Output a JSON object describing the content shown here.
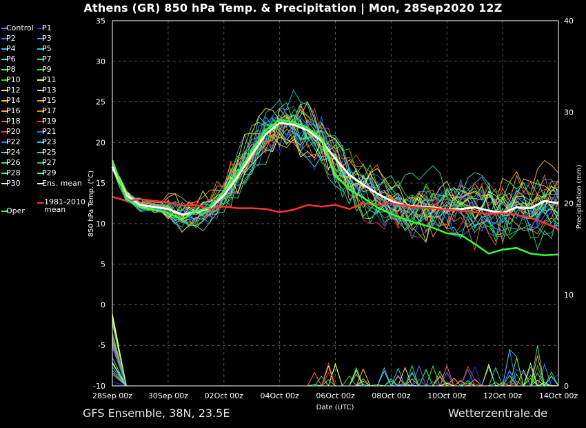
{
  "title": "Athens  (GR)  850 hPa Temp. & Precipitation | Mon, 28Sep2020 12Z",
  "footer": {
    "left": "GFS Ensemble, 38N, 23.5E",
    "right": "Wetterzentrale.de"
  },
  "chart_data": {
    "type": "line",
    "xlabel": "Date (UTC)",
    "ylabel": "850 hPa Temp. (°C)",
    "y2label": "Precipitation (mm)",
    "ylim": [
      -10,
      35
    ],
    "y2lim": [
      0,
      40
    ],
    "xlim_hours": [
      0,
      384
    ],
    "x_ticks": [
      "28Sep 00z",
      "30Sep 00z",
      "02Oct 00z",
      "04Oct 00z",
      "06Oct 00z",
      "08Oct 00z",
      "10Oct 00z",
      "12Oct 00z",
      "14Oct 00z"
    ],
    "y_ticks": [
      -10,
      -5,
      0,
      5,
      10,
      15,
      20,
      25,
      30,
      35
    ],
    "y2_ticks": [
      0,
      10,
      20,
      30,
      40
    ],
    "grid": true,
    "legend_position": "left",
    "legend": [
      {
        "name": "Control",
        "color": "#4f6bff"
      },
      {
        "name": "P1",
        "color": "#2233dd"
      },
      {
        "name": "P2",
        "color": "#3f7bff"
      },
      {
        "name": "P3",
        "color": "#3c8cff"
      },
      {
        "name": "P4",
        "color": "#4fb4ff"
      },
      {
        "name": "P5",
        "color": "#22c8e8"
      },
      {
        "name": "P6",
        "color": "#44e0c8"
      },
      {
        "name": "P7",
        "color": "#22e88c"
      },
      {
        "name": "P8",
        "color": "#55ee55"
      },
      {
        "name": "P9",
        "color": "#33dd33"
      },
      {
        "name": "P10",
        "color": "#22ee22"
      },
      {
        "name": "P11",
        "color": "#ffff33"
      },
      {
        "name": "P12",
        "color": "#ffe680"
      },
      {
        "name": "P13",
        "color": "#ffd24d"
      },
      {
        "name": "P14",
        "color": "#ffc040"
      },
      {
        "name": "P15",
        "color": "#ff9f30"
      },
      {
        "name": "P16",
        "color": "#ff9966"
      },
      {
        "name": "P17",
        "color": "#ff7a33"
      },
      {
        "name": "P18",
        "color": "#ff6644"
      },
      {
        "name": "P19",
        "color": "#ee4422"
      },
      {
        "name": "P20",
        "color": "#ff3333"
      },
      {
        "name": "P21",
        "color": "#3366ff"
      },
      {
        "name": "P22",
        "color": "#2f7aff"
      },
      {
        "name": "P23",
        "color": "#33bbff"
      },
      {
        "name": "P24",
        "color": "#5fd4e8"
      },
      {
        "name": "P25",
        "color": "#33e0a0"
      },
      {
        "name": "P26",
        "color": "#44dd88"
      },
      {
        "name": "P27",
        "color": "#22cc66"
      },
      {
        "name": "P28",
        "color": "#66ee66"
      },
      {
        "name": "P29",
        "color": "#44ff44"
      },
      {
        "name": "P30",
        "color": "#ffff66"
      },
      {
        "name": "Ens. mean",
        "color": "#ffffff"
      },
      {
        "name": "Oper",
        "color": "#33ff33"
      },
      {
        "name": "1981-2010 mean",
        "color": "#ff3333"
      }
    ],
    "series": [
      {
        "name": "Ens. mean",
        "color": "#ffffff",
        "x": [
          0,
          12,
          24,
          48,
          60,
          72,
          84,
          96,
          108,
          120,
          132,
          144,
          156,
          168,
          180,
          192,
          204,
          216,
          228,
          240,
          252,
          264,
          276,
          288,
          300,
          312,
          324,
          336,
          348,
          360,
          372,
          384
        ],
        "values": [
          17,
          13.5,
          12.3,
          11.8,
          11.1,
          11.4,
          11.9,
          13.5,
          15.8,
          18.5,
          21,
          22.4,
          22.2,
          21.5,
          20.2,
          18,
          16,
          14.8,
          13.7,
          12.8,
          12.2,
          12.1,
          12,
          11.7,
          11.8,
          12,
          11.6,
          11.3,
          12,
          11.9,
          12.8,
          12.5
        ]
      },
      {
        "name": "1981-2010 mean",
        "color": "#ff3333",
        "x": [
          0,
          12,
          24,
          36,
          48,
          60,
          72,
          84,
          96,
          108,
          120,
          132,
          144,
          156,
          168,
          180,
          192,
          204,
          216,
          228,
          240,
          252,
          264,
          276,
          288,
          300,
          312,
          324,
          336,
          348,
          360,
          372,
          384
        ],
        "values": [
          13.3,
          12.8,
          13,
          12.8,
          12.6,
          12.2,
          12.3,
          11.8,
          12.1,
          11.9,
          11.9,
          11.8,
          11.4,
          11.7,
          12.3,
          12.1,
          12.3,
          11.8,
          12.5,
          12.3,
          12.5,
          12.2,
          12,
          11.9,
          11.7,
          11.6,
          11.4,
          11.2,
          11.3,
          11.1,
          10.7,
          10.1,
          9.3
        ]
      },
      {
        "name": "Oper",
        "color": "#33ff33",
        "x": [
          0,
          12,
          24,
          48,
          60,
          72,
          84,
          96,
          108,
          120,
          132,
          144,
          156,
          168,
          180,
          192,
          204,
          216,
          228,
          240,
          252,
          264,
          276,
          288,
          300,
          312,
          324,
          336,
          348,
          360,
          372,
          384
        ],
        "values": [
          17.8,
          13,
          12,
          11.3,
          10.5,
          11.5,
          12,
          14,
          16.2,
          19,
          21.5,
          22.8,
          22.5,
          21.8,
          20.5,
          16,
          14.2,
          13.2,
          12,
          11.2,
          10.5,
          10,
          9.5,
          8.8,
          8.6,
          7.5,
          6.3,
          6.8,
          7,
          6.3,
          6.1,
          6.2
        ]
      }
    ]
  }
}
